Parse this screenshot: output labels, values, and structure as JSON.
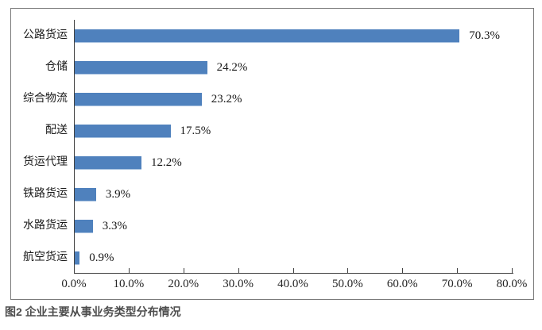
{
  "caption": "图2 企业主要从事业务类型分布情况",
  "chart_data": {
    "type": "bar",
    "orientation": "horizontal",
    "title": "",
    "xlabel": "",
    "ylabel": "",
    "categories": [
      "公路货运",
      "仓储",
      "综合物流",
      "配送",
      "货运代理",
      "铁路货运",
      "水路货运",
      "航空货运"
    ],
    "values": [
      70.3,
      24.2,
      23.2,
      17.5,
      12.2,
      3.9,
      3.3,
      0.9
    ],
    "value_labels": [
      "70.3%",
      "24.2%",
      "23.2%",
      "17.5%",
      "12.2%",
      "3.9%",
      "3.3%",
      "0.9%"
    ],
    "x_ticks": [
      "0.0%",
      "10.0%",
      "20.0%",
      "30.0%",
      "40.0%",
      "50.0%",
      "60.0%",
      "70.0%",
      "80.0%"
    ],
    "x_tick_values": [
      0,
      10,
      20,
      30,
      40,
      50,
      60,
      70,
      80
    ],
    "xlim": [
      0,
      80
    ],
    "bar_color": "#4F81BD",
    "grid": false,
    "legend": false
  }
}
